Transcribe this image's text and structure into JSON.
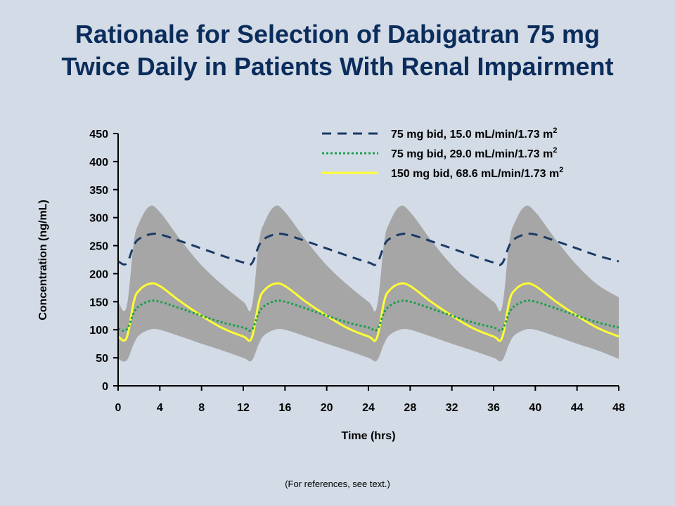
{
  "slide": {
    "title_line1": "Rationale for Selection of Dabigatran 75 mg",
    "title_line2": "Twice Daily in Patients With Renal Impairment",
    "footnote": "(For references, see text.)"
  },
  "colors": {
    "background": "#d3dbe6",
    "title": "#0b2d5c",
    "band": "#a6a6a6",
    "series_75_15": "#1b3a66",
    "series_75_29": "#1aa04a",
    "series_150_68": "#ffff33"
  },
  "chart_data": {
    "type": "line",
    "title": "",
    "xlabel": "Time (hrs)",
    "ylabel": "Concentration (ng/mL)",
    "xlim": [
      0,
      48
    ],
    "ylim": [
      0,
      450
    ],
    "xticks": [
      0,
      4,
      8,
      12,
      16,
      20,
      24,
      28,
      32,
      36,
      40,
      44,
      48
    ],
    "yticks": [
      0,
      50,
      100,
      150,
      200,
      250,
      300,
      350,
      400,
      450
    ],
    "grid": false,
    "legend_position": "top-right",
    "band": {
      "x": [
        0,
        0.8,
        1.5,
        2,
        3,
        4,
        6,
        8,
        10,
        12,
        12.8,
        13.5,
        14,
        15,
        16,
        18,
        20,
        22,
        24,
        24.8,
        25.5,
        26,
        27,
        28,
        30,
        32,
        34,
        36,
        36.8,
        37.5,
        38,
        39,
        40,
        42,
        44,
        46,
        48
      ],
      "upper": [
        150,
        140,
        255,
        290,
        320,
        310,
        260,
        215,
        180,
        150,
        140,
        255,
        290,
        320,
        310,
        260,
        215,
        180,
        150,
        140,
        255,
        290,
        320,
        310,
        260,
        215,
        180,
        150,
        140,
        255,
        290,
        320,
        310,
        260,
        215,
        180,
        158
      ],
      "lower": [
        48,
        45,
        75,
        90,
        100,
        100,
        88,
        75,
        63,
        50,
        45,
        75,
        90,
        100,
        100,
        88,
        75,
        63,
        50,
        45,
        75,
        90,
        100,
        100,
        88,
        75,
        63,
        50,
        45,
        75,
        90,
        100,
        100,
        88,
        75,
        63,
        48
      ]
    },
    "series": [
      {
        "name": "75 mg bid, 15.0 mL/min/1.73 m",
        "name_superscript": "2",
        "style": "dashed",
        "x": [
          0,
          0.8,
          1.5,
          2,
          3,
          4,
          6,
          8,
          10,
          12,
          12.8,
          13.5,
          14,
          15,
          16,
          18,
          20,
          22,
          24,
          24.8,
          25.5,
          26,
          27,
          28,
          30,
          32,
          34,
          36,
          36.8,
          37.5,
          38,
          39,
          40,
          42,
          44,
          46,
          48
        ],
        "values": [
          222,
          218,
          250,
          262,
          270,
          270,
          258,
          245,
          232,
          220,
          218,
          250,
          262,
          270,
          270,
          258,
          245,
          232,
          220,
          218,
          250,
          262,
          270,
          270,
          258,
          245,
          232,
          220,
          218,
          250,
          262,
          270,
          270,
          258,
          245,
          232,
          222
        ]
      },
      {
        "name": "75 mg bid, 29.0 mL/min/1.73 m",
        "name_superscript": "2",
        "style": "dotted",
        "x": [
          0,
          0.8,
          1.5,
          2,
          3,
          4,
          6,
          8,
          10,
          12,
          12.8,
          13.5,
          14,
          15,
          16,
          18,
          20,
          22,
          24,
          24.8,
          25.5,
          26,
          27,
          28,
          30,
          32,
          34,
          36,
          36.8,
          37.5,
          38,
          39,
          40,
          42,
          44,
          46,
          48
        ],
        "values": [
          102,
          100,
          130,
          142,
          151,
          150,
          138,
          125,
          113,
          104,
          100,
          130,
          142,
          151,
          150,
          138,
          125,
          113,
          104,
          100,
          130,
          142,
          151,
          150,
          138,
          125,
          113,
          104,
          100,
          130,
          142,
          151,
          150,
          138,
          125,
          113,
          104
        ]
      },
      {
        "name": "150 mg bid, 68.6 mL/min/1.73 m",
        "name_superscript": "2",
        "style": "solid",
        "x": [
          0,
          0.8,
          1.5,
          2,
          3,
          4,
          6,
          8,
          10,
          12,
          12.8,
          13.5,
          14,
          15,
          16,
          18,
          20,
          22,
          24,
          24.8,
          25.5,
          26,
          27,
          28,
          30,
          32,
          34,
          36,
          36.8,
          37.5,
          38,
          39,
          40,
          42,
          44,
          46,
          48
        ],
        "values": [
          88,
          85,
          150,
          170,
          182,
          178,
          150,
          125,
          103,
          88,
          85,
          150,
          170,
          182,
          178,
          150,
          125,
          103,
          88,
          85,
          150,
          170,
          182,
          178,
          150,
          125,
          103,
          88,
          85,
          150,
          170,
          182,
          178,
          150,
          125,
          103,
          88
        ]
      }
    ]
  }
}
